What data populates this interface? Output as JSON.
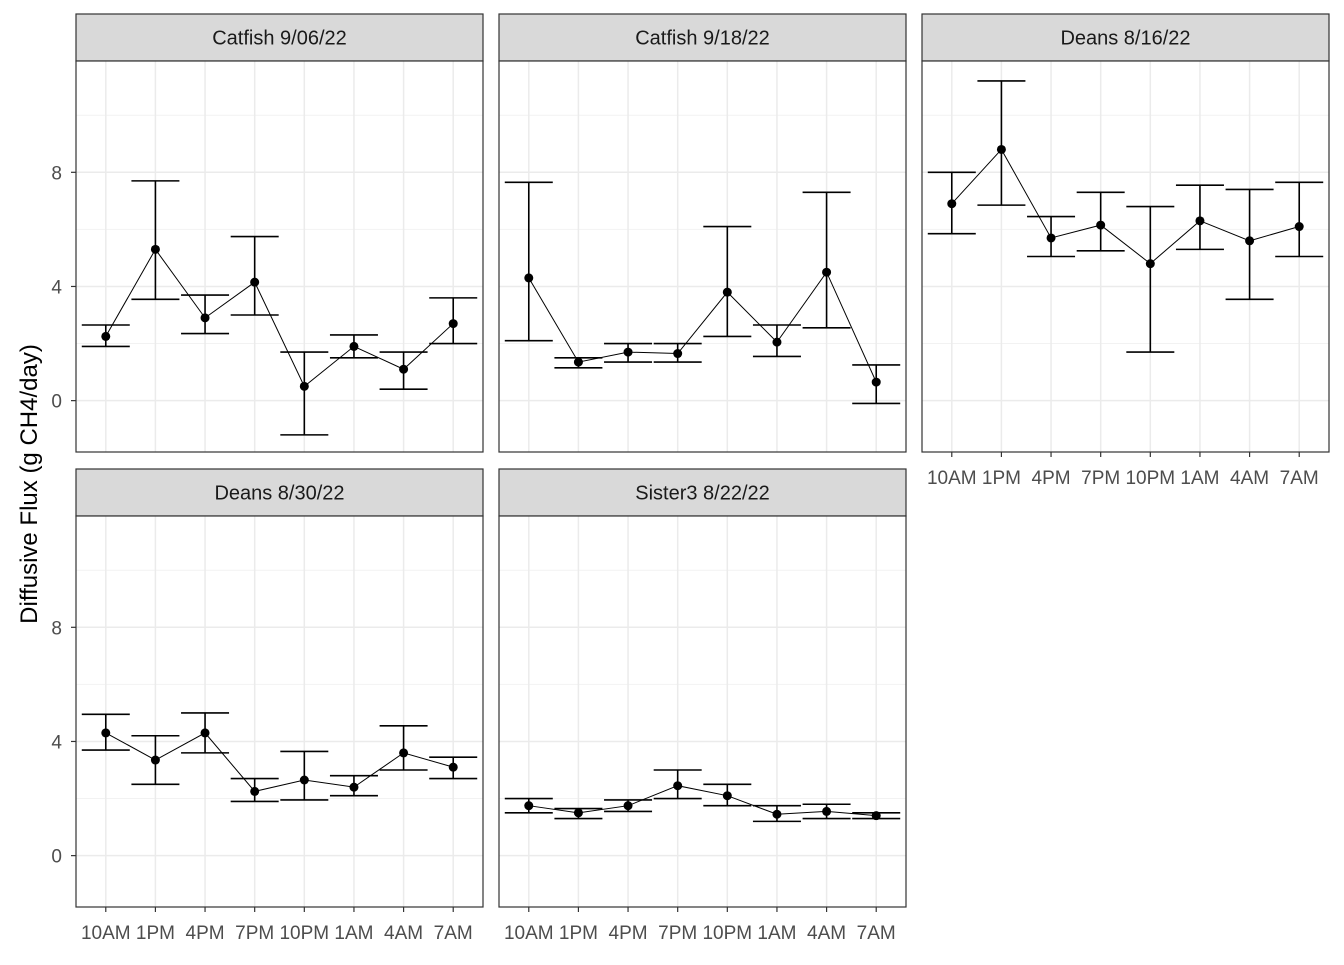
{
  "figure": {
    "ylabel": "Diffusive Flux (g CH4/day)"
  },
  "chart_data": [
    {
      "type": "line",
      "facet": "Catfish 9/06/22",
      "categories": [
        "10AM",
        "1PM",
        "4PM",
        "7PM",
        "10PM",
        "1AM",
        "4AM",
        "7AM"
      ],
      "y_ticks": [
        0,
        4,
        8
      ],
      "ylim": [
        -1.8,
        11.9
      ],
      "grid": true,
      "series": [
        {
          "values": [
            2.25,
            5.3,
            2.9,
            4.15,
            0.5,
            1.9,
            1.1,
            2.7
          ],
          "error_low": [
            1.9,
            3.55,
            2.35,
            3.0,
            -1.2,
            1.5,
            0.4,
            2.0
          ],
          "error_high": [
            2.65,
            7.7,
            3.7,
            5.75,
            1.7,
            2.3,
            1.7,
            3.6
          ]
        }
      ]
    },
    {
      "type": "line",
      "facet": "Catfish 9/18/22",
      "categories": [
        "10AM",
        "1PM",
        "4PM",
        "7PM",
        "10PM",
        "1AM",
        "4AM",
        "7AM"
      ],
      "y_ticks": [
        0,
        4,
        8
      ],
      "ylim": [
        -1.8,
        11.9
      ],
      "grid": true,
      "series": [
        {
          "values": [
            4.3,
            1.35,
            1.7,
            1.65,
            3.8,
            2.05,
            4.5,
            0.65
          ],
          "error_low": [
            2.1,
            1.15,
            1.35,
            1.35,
            2.25,
            1.55,
            2.55,
            -0.1
          ],
          "error_high": [
            7.65,
            1.5,
            2.0,
            2.0,
            6.1,
            2.65,
            7.3,
            1.25
          ]
        }
      ]
    },
    {
      "type": "line",
      "facet": "Deans 8/16/22",
      "categories": [
        "10AM",
        "1PM",
        "4PM",
        "7PM",
        "10PM",
        "1AM",
        "4AM",
        "7AM"
      ],
      "y_ticks": [
        0,
        4,
        8
      ],
      "ylim": [
        -1.8,
        11.9
      ],
      "grid": true,
      "series": [
        {
          "values": [
            6.9,
            8.8,
            5.7,
            6.15,
            4.8,
            6.3,
            5.6,
            6.1
          ],
          "error_low": [
            5.85,
            6.85,
            5.05,
            5.25,
            1.7,
            5.3,
            3.55,
            5.05
          ],
          "error_high": [
            8.0,
            11.2,
            6.45,
            7.3,
            6.8,
            7.55,
            7.4,
            7.65
          ]
        }
      ]
    },
    {
      "type": "line",
      "facet": "Deans 8/30/22",
      "categories": [
        "10AM",
        "1PM",
        "4PM",
        "7PM",
        "10PM",
        "1AM",
        "4AM",
        "7AM"
      ],
      "y_ticks": [
        0,
        4,
        8
      ],
      "ylim": [
        -1.8,
        11.9
      ],
      "grid": true,
      "series": [
        {
          "values": [
            4.3,
            3.35,
            4.3,
            2.25,
            2.65,
            2.4,
            3.6,
            3.1
          ],
          "error_low": [
            3.7,
            2.5,
            3.6,
            1.9,
            1.95,
            2.1,
            3.0,
            2.7
          ],
          "error_high": [
            4.95,
            4.2,
            5.0,
            2.7,
            3.65,
            2.8,
            4.55,
            3.45
          ]
        }
      ]
    },
    {
      "type": "line",
      "facet": "Sister3 8/22/22",
      "categories": [
        "10AM",
        "1PM",
        "4PM",
        "7PM",
        "10PM",
        "1AM",
        "4AM",
        "7AM"
      ],
      "y_ticks": [
        0,
        4,
        8
      ],
      "ylim": [
        -1.8,
        11.9
      ],
      "grid": true,
      "series": [
        {
          "values": [
            1.75,
            1.5,
            1.75,
            2.45,
            2.1,
            1.45,
            1.55,
            1.4
          ],
          "error_low": [
            1.5,
            1.3,
            1.55,
            2.0,
            1.75,
            1.2,
            1.3,
            1.3
          ],
          "error_high": [
            2.0,
            1.65,
            1.95,
            3.0,
            2.5,
            1.75,
            1.8,
            1.5
          ]
        }
      ]
    }
  ]
}
